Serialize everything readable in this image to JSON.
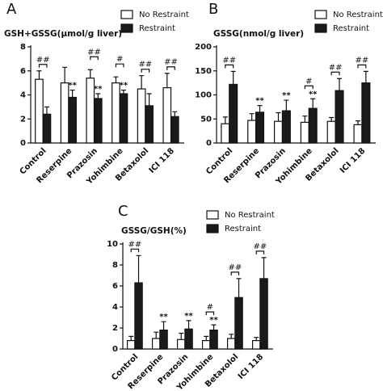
{
  "chart_data": [
    {
      "type": "bar",
      "label": "A",
      "title": "GSH+GSSG(μmol/g liver)",
      "categories": [
        "Control",
        "Reserpine",
        "Prazosin",
        "Yohimbine",
        "Betaxolol",
        "ICI 118"
      ],
      "series": [
        {
          "name": "No Restraint",
          "color": "#ffffff",
          "values": [
            5.3,
            5.0,
            5.4,
            5.0,
            4.5,
            4.6
          ],
          "errors": [
            0.7,
            1.3,
            0.7,
            0.5,
            1.1,
            1.2
          ]
        },
        {
          "name": "Restraint",
          "color": "#1a1a1a",
          "values": [
            2.4,
            3.8,
            3.7,
            4.1,
            3.1,
            2.2
          ],
          "errors": [
            0.6,
            0.6,
            0.4,
            0.3,
            1.0,
            0.4
          ],
          "markers": [
            null,
            "**",
            "**",
            "**",
            null,
            null
          ]
        }
      ],
      "bracket_labels": [
        "##",
        null,
        "##",
        "#",
        "##",
        "##"
      ],
      "ylim": [
        0,
        8
      ],
      "yticks": [
        0,
        2,
        4,
        6,
        8
      ]
    },
    {
      "type": "bar",
      "label": "B",
      "title": "GSSG(nmol/g liver)",
      "categories": [
        "Control",
        "Reserpine",
        "Prazosin",
        "Yohimbine",
        "Betaxolol",
        "ICI 118"
      ],
      "series": [
        {
          "name": "No Restraint",
          "color": "#ffffff",
          "values": [
            40,
            47,
            45,
            43,
            45,
            38
          ],
          "errors": [
            14,
            14,
            18,
            13,
            8,
            8
          ]
        },
        {
          "name": "Restraint",
          "color": "#1a1a1a",
          "values": [
            122,
            64,
            67,
            72,
            109,
            125
          ],
          "errors": [
            27,
            14,
            22,
            20,
            25,
            24
          ],
          "markers": [
            null,
            "**",
            "**",
            "**",
            null,
            null
          ]
        }
      ],
      "bracket_labels": [
        "##",
        null,
        null,
        "#",
        "##",
        "##"
      ],
      "ylim": [
        0,
        200
      ],
      "yticks": [
        0,
        50,
        100,
        150,
        200
      ]
    },
    {
      "type": "bar",
      "label": "C",
      "title": "GSSG/GSH(%)",
      "categories": [
        "Control",
        "Reserpine",
        "Prazosin",
        "Yohimbine",
        "Betaxolol",
        "ICI 118"
      ],
      "series": [
        {
          "name": "No Restraint",
          "color": "#ffffff",
          "values": [
            0.8,
            1.0,
            0.9,
            0.8,
            1.0,
            0.8
          ],
          "errors": [
            0.4,
            0.6,
            0.6,
            0.4,
            0.4,
            0.3
          ]
        },
        {
          "name": "Restraint",
          "color": "#1a1a1a",
          "values": [
            6.3,
            1.8,
            1.9,
            1.8,
            4.9,
            6.7
          ],
          "errors": [
            2.6,
            0.8,
            0.8,
            0.5,
            1.8,
            2.0
          ],
          "markers": [
            null,
            "**",
            "**",
            "**",
            null,
            null
          ]
        }
      ],
      "bracket_labels": [
        "##",
        null,
        null,
        "#",
        "##",
        "##"
      ],
      "ylim": [
        0,
        10
      ],
      "yticks": [
        0,
        2,
        4,
        6,
        8,
        10
      ]
    }
  ]
}
